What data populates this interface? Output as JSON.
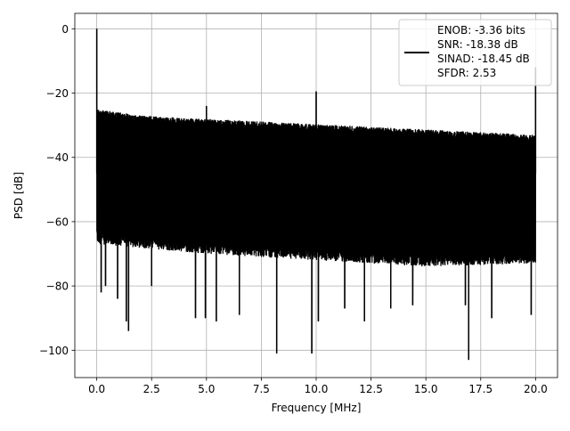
{
  "chart_data": {
    "type": "line",
    "title": "",
    "xlabel": "Frequency [MHz]",
    "ylabel": "PSD [dB]",
    "xlim": [
      -1.0,
      21.0
    ],
    "ylim": [
      -108.5,
      4.8
    ],
    "xticks": [
      0.0,
      2.5,
      5.0,
      7.5,
      10.0,
      12.5,
      15.0,
      17.5,
      20.0
    ],
    "xtick_labels": [
      "0.0",
      "2.5",
      "5.0",
      "7.5",
      "10.0",
      "12.5",
      "15.0",
      "17.5",
      "20.0"
    ],
    "yticks": [
      0,
      -20,
      -40,
      -60,
      -80,
      -100
    ],
    "ytick_labels": [
      "0",
      "−20",
      "−40",
      "−60",
      "−80",
      "−100"
    ],
    "grid": true,
    "legend_position": "top-right",
    "legend": [
      "ENOB: -3.36 bits",
      "SNR: -18.38 dB",
      "SINAD: -18.45 dB",
      "SFDR: 2.53"
    ],
    "series": [
      {
        "color": "#000000",
        "noise_floor_upper_db": [
          [
            0.1,
            -25
          ],
          [
            2.0,
            -27
          ],
          [
            5.0,
            -28
          ],
          [
            8.0,
            -29
          ],
          [
            11.0,
            -30
          ],
          [
            14.0,
            -31
          ],
          [
            17.0,
            -32
          ],
          [
            20.0,
            -33
          ]
        ],
        "noise_floor_lower_db": [
          [
            0.1,
            -67
          ],
          [
            5.0,
            -70
          ],
          [
            10.0,
            -72
          ],
          [
            15.0,
            -74
          ],
          [
            20.0,
            -73
          ]
        ],
        "peaks": [
          {
            "x": 0.0,
            "y": 0
          },
          {
            "x": 5.0,
            "y": -24
          },
          {
            "x": 10.0,
            "y": -19.5
          },
          {
            "x": 20.0,
            "y": -12
          }
        ],
        "dips": [
          {
            "x": 0.2,
            "y": -82
          },
          {
            "x": 0.4,
            "y": -80
          },
          {
            "x": 0.95,
            "y": -84
          },
          {
            "x": 1.35,
            "y": -91
          },
          {
            "x": 1.45,
            "y": -94
          },
          {
            "x": 2.5,
            "y": -80
          },
          {
            "x": 4.5,
            "y": -90
          },
          {
            "x": 4.95,
            "y": -90
          },
          {
            "x": 5.45,
            "y": -91
          },
          {
            "x": 6.5,
            "y": -89
          },
          {
            "x": 8.2,
            "y": -101
          },
          {
            "x": 9.8,
            "y": -101
          },
          {
            "x": 10.1,
            "y": -91
          },
          {
            "x": 11.3,
            "y": -87
          },
          {
            "x": 12.2,
            "y": -91
          },
          {
            "x": 13.4,
            "y": -87
          },
          {
            "x": 14.4,
            "y": -86
          },
          {
            "x": 16.8,
            "y": -86
          },
          {
            "x": 16.95,
            "y": -103
          },
          {
            "x": 18.0,
            "y": -90
          },
          {
            "x": 19.8,
            "y": -89
          }
        ]
      }
    ]
  }
}
